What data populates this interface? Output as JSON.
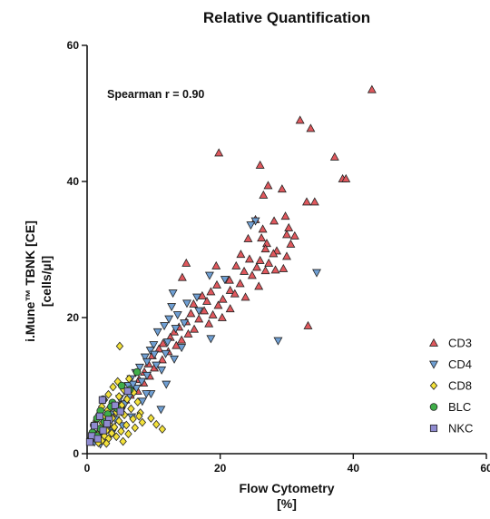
{
  "chart_data": {
    "type": "scatter",
    "title": "Relative Quantification",
    "xlabel": "Flow Cytometry",
    "xlabel_unit": "[%]",
    "ylabel": "i.Mune™ TBNK [CE]",
    "ylabel_unit": "[cells/µl]",
    "xlim": [
      0,
      60
    ],
    "ylim": [
      0,
      60
    ],
    "x_ticks": [
      0,
      20,
      40,
      60
    ],
    "y_ticks": [
      0,
      20,
      40,
      60
    ],
    "grid": false,
    "legend_position": "bottom-right",
    "annotation": "Spearman r = 0.90",
    "series": [
      {
        "name": "CD3",
        "marker": "triangle-up",
        "color": "#e0585d",
        "points": [
          [
            42.8,
            53.5
          ],
          [
            32.0,
            49.0
          ],
          [
            33.6,
            47.8
          ],
          [
            19.8,
            44.2
          ],
          [
            37.2,
            43.6
          ],
          [
            26.0,
            42.4
          ],
          [
            38.4,
            40.4
          ],
          [
            38.9,
            40.4
          ],
          [
            29.3,
            38.9
          ],
          [
            27.2,
            39.4
          ],
          [
            26.5,
            38.0
          ],
          [
            33.0,
            37.0
          ],
          [
            34.2,
            37.0
          ],
          [
            29.8,
            34.9
          ],
          [
            25.3,
            34.4
          ],
          [
            28.1,
            34.2
          ],
          [
            30.3,
            33.2
          ],
          [
            26.4,
            33.0
          ],
          [
            30.0,
            32.2
          ],
          [
            31.2,
            32.0
          ],
          [
            26.2,
            31.7
          ],
          [
            24.2,
            31.6
          ],
          [
            27.0,
            30.9
          ],
          [
            30.6,
            30.8
          ],
          [
            26.8,
            30.1
          ],
          [
            28.5,
            29.8
          ],
          [
            23.1,
            29.3
          ],
          [
            28.0,
            29.4
          ],
          [
            30.0,
            29.0
          ],
          [
            24.4,
            28.6
          ],
          [
            26.0,
            28.4
          ],
          [
            27.3,
            28.0
          ],
          [
            14.9,
            28.0
          ],
          [
            19.4,
            27.6
          ],
          [
            22.4,
            27.6
          ],
          [
            25.5,
            27.4
          ],
          [
            29.5,
            27.2
          ],
          [
            28.3,
            27.0
          ],
          [
            23.6,
            26.8
          ],
          [
            26.8,
            26.9
          ],
          [
            24.8,
            26.2
          ],
          [
            14.3,
            25.9
          ],
          [
            21.4,
            25.5
          ],
          [
            23.0,
            25.0
          ],
          [
            19.5,
            24.8
          ],
          [
            25.8,
            24.6
          ],
          [
            21.5,
            24.0
          ],
          [
            18.6,
            23.8
          ],
          [
            22.2,
            23.5
          ],
          [
            17.3,
            23.2
          ],
          [
            23.8,
            23.0
          ],
          [
            20.4,
            22.7
          ],
          [
            18.0,
            22.4
          ],
          [
            16.0,
            22.0
          ],
          [
            19.7,
            21.8
          ],
          [
            21.5,
            21.3
          ],
          [
            17.6,
            21.0
          ],
          [
            15.6,
            20.6
          ],
          [
            18.9,
            20.4
          ],
          [
            20.3,
            20.0
          ],
          [
            16.8,
            19.8
          ],
          [
            14.9,
            19.4
          ],
          [
            18.3,
            19.1
          ],
          [
            13.8,
            18.6
          ],
          [
            33.2,
            18.8
          ],
          [
            16.1,
            18.3
          ],
          [
            13.1,
            17.9
          ],
          [
            15.2,
            17.6
          ],
          [
            12.5,
            17.1
          ],
          [
            14.2,
            16.7
          ],
          [
            11.4,
            16.2
          ],
          [
            13.4,
            15.9
          ],
          [
            10.8,
            15.4
          ],
          [
            12.2,
            15.0
          ],
          [
            9.8,
            14.4
          ],
          [
            11.3,
            13.8
          ],
          [
            9.2,
            13.2
          ],
          [
            10.1,
            12.6
          ],
          [
            8.6,
            12.0
          ],
          [
            9.4,
            11.4
          ],
          [
            7.8,
            10.9
          ],
          [
            8.5,
            10.4
          ],
          [
            7.1,
            9.9
          ],
          [
            7.6,
            9.2
          ],
          [
            6.5,
            8.6
          ],
          [
            5.8,
            7.9
          ],
          [
            5.0,
            7.2
          ],
          [
            4.4,
            6.4
          ],
          [
            3.8,
            5.6
          ],
          [
            3.1,
            4.8
          ],
          [
            2.4,
            4.0
          ],
          [
            1.9,
            3.4
          ],
          [
            1.3,
            2.8
          ],
          [
            0.9,
            2.2
          ]
        ]
      },
      {
        "name": "CD4",
        "marker": "triangle-down",
        "color": "#6f9fd3",
        "points": [
          [
            25.3,
            34.2
          ],
          [
            24.6,
            33.6
          ],
          [
            34.5,
            26.6
          ],
          [
            18.4,
            26.2
          ],
          [
            20.7,
            25.6
          ],
          [
            12.9,
            23.6
          ],
          [
            16.5,
            23.0
          ],
          [
            15.0,
            22.1
          ],
          [
            12.7,
            21.6
          ],
          [
            16.8,
            21.0
          ],
          [
            13.6,
            20.4
          ],
          [
            12.3,
            19.8
          ],
          [
            14.6,
            19.2
          ],
          [
            11.6,
            18.8
          ],
          [
            13.3,
            18.4
          ],
          [
            10.6,
            17.9
          ],
          [
            28.7,
            16.6
          ],
          [
            18.6,
            16.9
          ],
          [
            12.1,
            16.4
          ],
          [
            10.0,
            16.0
          ],
          [
            14.2,
            15.6
          ],
          [
            9.5,
            15.2
          ],
          [
            11.8,
            14.7
          ],
          [
            8.7,
            14.2
          ],
          [
            13.1,
            13.9
          ],
          [
            9.0,
            13.5
          ],
          [
            10.4,
            13.0
          ],
          [
            7.9,
            12.7
          ],
          [
            11.2,
            12.3
          ],
          [
            7.3,
            11.9
          ],
          [
            9.0,
            11.5
          ],
          [
            6.6,
            11.0
          ],
          [
            8.2,
            10.6
          ],
          [
            11.9,
            10.2
          ],
          [
            6.2,
            10.0
          ],
          [
            7.4,
            9.6
          ],
          [
            5.6,
            9.2
          ],
          [
            9.6,
            8.8
          ],
          [
            6.4,
            8.5
          ],
          [
            4.9,
            8.1
          ],
          [
            8.3,
            7.7
          ],
          [
            5.7,
            7.3
          ],
          [
            4.2,
            6.9
          ],
          [
            11.1,
            6.5
          ],
          [
            5.1,
            6.2
          ],
          [
            3.6,
            5.8
          ],
          [
            6.7,
            5.4
          ],
          [
            4.3,
            5.0
          ],
          [
            3.0,
            4.6
          ],
          [
            5.3,
            4.1
          ],
          [
            2.5,
            3.7
          ],
          [
            3.9,
            3.3
          ],
          [
            2.0,
            2.9
          ],
          [
            1.5,
            2.4
          ],
          [
            3.1,
            2.1
          ],
          [
            1.1,
            1.7
          ],
          [
            2.0,
            1.4
          ],
          [
            8.9,
            8.8
          ],
          [
            6.9,
            10.2
          ],
          [
            10.1,
            14.6
          ]
        ]
      },
      {
        "name": "CD8",
        "marker": "diamond",
        "color": "#f3e13a",
        "points": [
          [
            4.9,
            15.8
          ],
          [
            4.6,
            10.6
          ],
          [
            6.3,
            11.0
          ],
          [
            3.9,
            9.8
          ],
          [
            5.5,
            9.4
          ],
          [
            7.0,
            9.0
          ],
          [
            3.2,
            8.7
          ],
          [
            4.8,
            8.4
          ],
          [
            6.0,
            8.0
          ],
          [
            2.6,
            7.9
          ],
          [
            7.6,
            7.6
          ],
          [
            3.9,
            7.4
          ],
          [
            5.2,
            7.1
          ],
          [
            2.2,
            6.9
          ],
          [
            6.6,
            6.6
          ],
          [
            3.1,
            6.4
          ],
          [
            4.4,
            6.1
          ],
          [
            8.0,
            6.0
          ],
          [
            1.8,
            5.8
          ],
          [
            5.6,
            5.7
          ],
          [
            2.7,
            5.4
          ],
          [
            3.8,
            5.2
          ],
          [
            6.9,
            5.1
          ],
          [
            1.4,
            4.9
          ],
          [
            4.8,
            4.8
          ],
          [
            2.3,
            4.5
          ],
          [
            3.3,
            4.3
          ],
          [
            5.9,
            4.2
          ],
          [
            1.0,
            4.0
          ],
          [
            4.1,
            3.9
          ],
          [
            7.2,
            3.8
          ],
          [
            11.3,
            3.6
          ],
          [
            2.0,
            3.6
          ],
          [
            2.9,
            3.4
          ],
          [
            5.1,
            3.3
          ],
          [
            0.8,
            3.1
          ],
          [
            3.7,
            3.0
          ],
          [
            6.2,
            2.9
          ],
          [
            1.6,
            2.8
          ],
          [
            2.6,
            2.6
          ],
          [
            4.4,
            2.5
          ],
          [
            1.2,
            2.3
          ],
          [
            3.2,
            2.2
          ],
          [
            0.6,
            2.0
          ],
          [
            2.2,
            1.9
          ],
          [
            5.4,
            1.8
          ],
          [
            1.7,
            1.6
          ],
          [
            2.9,
            1.5
          ],
          [
            9.6,
            5.2
          ],
          [
            10.4,
            4.3
          ],
          [
            8.3,
            4.6
          ],
          [
            7.8,
            5.5
          ]
        ]
      },
      {
        "name": "BLC",
        "marker": "circle",
        "color": "#3fae49",
        "points": [
          [
            7.5,
            12.0
          ],
          [
            5.2,
            10.0
          ],
          [
            6.4,
            9.4
          ],
          [
            2.4,
            8.0
          ],
          [
            3.8,
            7.5
          ],
          [
            4.6,
            6.6
          ],
          [
            2.0,
            6.3
          ],
          [
            3.1,
            5.8
          ],
          [
            1.5,
            5.2
          ],
          [
            2.6,
            4.7
          ],
          [
            1.0,
            4.2
          ],
          [
            2.0,
            3.7
          ],
          [
            0.8,
            3.1
          ],
          [
            1.5,
            2.6
          ],
          [
            0.5,
            2.0
          ],
          [
            3.6,
            6.9
          ]
        ]
      },
      {
        "name": "NKC",
        "marker": "square",
        "color": "#8f8bd0",
        "points": [
          [
            2.3,
            7.9
          ],
          [
            6.1,
            9.2
          ],
          [
            4.2,
            7.1
          ],
          [
            1.9,
            5.5
          ],
          [
            3.3,
            5.0
          ],
          [
            1.1,
            4.1
          ],
          [
            2.4,
            3.4
          ],
          [
            0.7,
            2.6
          ],
          [
            1.6,
            2.2
          ],
          [
            0.4,
            1.7
          ],
          [
            5.0,
            6.2
          ],
          [
            3.0,
            4.4
          ]
        ]
      }
    ]
  }
}
